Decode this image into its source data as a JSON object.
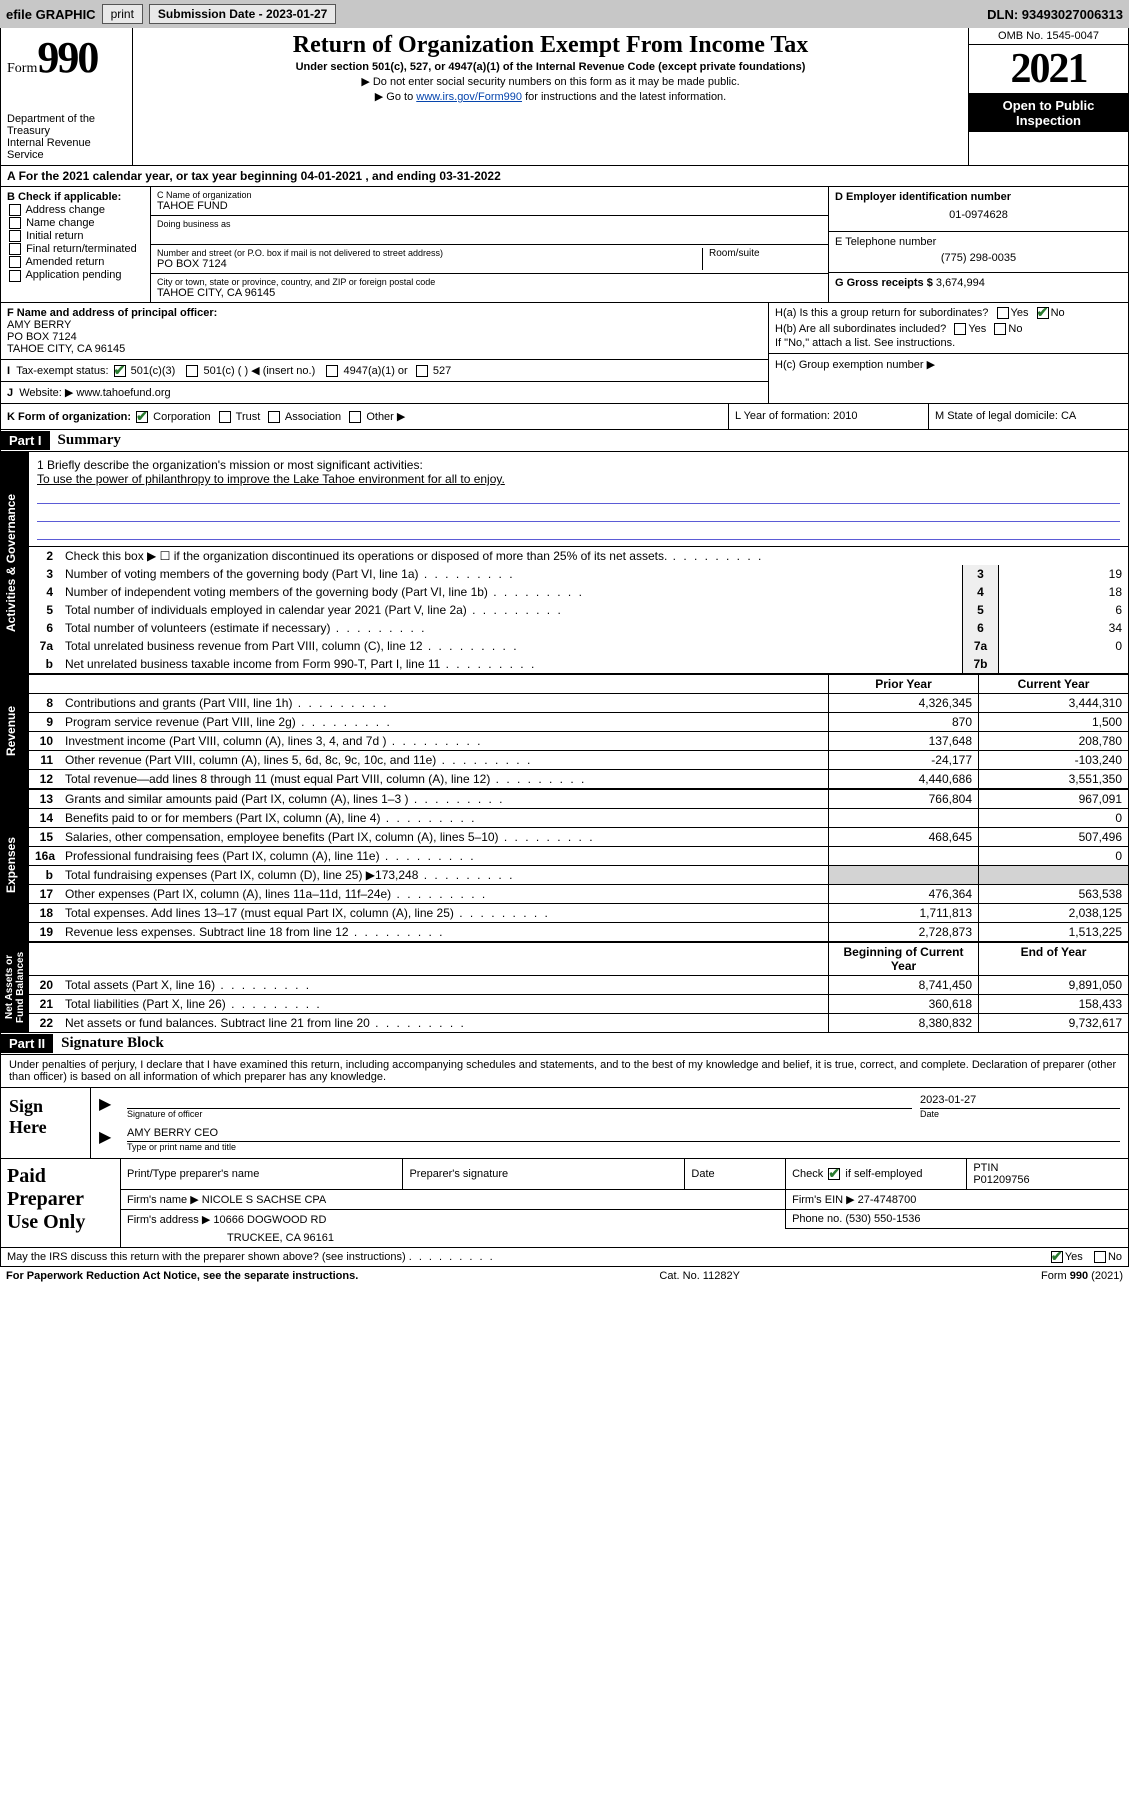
{
  "topbar": {
    "efile_label": "efile GRAPHIC",
    "print_btn": "print",
    "sub_date_label": "Submission Date - 2023-01-27",
    "dln_label": "DLN: 93493027006313"
  },
  "header": {
    "form_small": "Form",
    "form_big": "990",
    "title": "Return of Organization Exempt From Income Tax",
    "subtitle": "Under section 501(c), 527, or 4947(a)(1) of the Internal Revenue Code (except private foundations)",
    "note1": "▶ Do not enter social security numbers on this form as it may be made public.",
    "note2_prefix": "▶ Go to ",
    "note2_link": "www.irs.gov/Form990",
    "note2_suffix": " for instructions and the latest information.",
    "dept": "Department of the Treasury",
    "irs": "Internal Revenue Service",
    "omb": "OMB No. 1545-0047",
    "year": "2021",
    "open": "Open to Public Inspection"
  },
  "line_a": "For the 2021 calendar year, or tax year beginning 04-01-2021   , and ending 03-31-2022",
  "block_b": {
    "title": "B Check if applicable:",
    "opts": [
      "Address change",
      "Name change",
      "Initial return",
      "Final return/terminated",
      "Amended return",
      "Application pending"
    ],
    "c_label": "C Name of organization",
    "c_val": "TAHOE FUND",
    "dba_label": "Doing business as",
    "addr_label": "Number and street (or P.O. box if mail is not delivered to street address)",
    "room_label": "Room/suite",
    "addr_val": "PO BOX 7124",
    "city_label": "City or town, state or province, country, and ZIP or foreign postal code",
    "city_val": "TAHOE CITY, CA  96145",
    "d_label": "D Employer identification number",
    "d_val": "01-0974628",
    "e_label": "E Telephone number",
    "e_val": "(775) 298-0035",
    "g_label": "G Gross receipts $",
    "g_val": "3,674,994"
  },
  "block_f": {
    "f_label": "F  Name and address of principal officer:",
    "f_name": "AMY BERRY",
    "f_addr1": "PO BOX 7124",
    "f_addr2": "TAHOE CITY, CA  96145",
    "i_label": "Tax-exempt status:",
    "i_501c3": "501(c)(3)",
    "i_501c": "501(c) (  ) ◀ (insert no.)",
    "i_4947": "4947(a)(1) or",
    "i_527": "527",
    "j_label": "Website: ▶",
    "j_val": "www.tahoefund.org",
    "ha_label": "H(a)  Is this a group return for subordinates?",
    "hb_label": "H(b)  Are all subordinates included?",
    "hb_note": "If \"No,\" attach a list. See instructions.",
    "hc_label": "H(c)  Group exemption number ▶",
    "yes": "Yes",
    "no": "No"
  },
  "line_k": {
    "k_label": "K Form of organization:",
    "opts": [
      "Corporation",
      "Trust",
      "Association",
      "Other ▶"
    ],
    "l_label": "L Year of formation: 2010",
    "m_label": "M State of legal domicile: CA"
  },
  "part1": {
    "num": "Part I",
    "title": "Summary"
  },
  "mission": {
    "l1": "1   Briefly describe the organization's mission or most significant activities:",
    "text": "To use the power of philanthropy to improve the Lake Tahoe environment for all to enjoy."
  },
  "gov_rows": [
    {
      "n": "2",
      "t": "Check this box ▶ ☐  if the organization discontinued its operations or disposed of more than 25% of its net assets.",
      "box": "",
      "v": ""
    },
    {
      "n": "3",
      "t": "Number of voting members of the governing body (Part VI, line 1a)",
      "box": "3",
      "v": "19"
    },
    {
      "n": "4",
      "t": "Number of independent voting members of the governing body (Part VI, line 1b)",
      "box": "4",
      "v": "18"
    },
    {
      "n": "5",
      "t": "Total number of individuals employed in calendar year 2021 (Part V, line 2a)",
      "box": "5",
      "v": "6"
    },
    {
      "n": "6",
      "t": "Total number of volunteers (estimate if necessary)",
      "box": "6",
      "v": "34"
    },
    {
      "n": "7a",
      "t": "Total unrelated business revenue from Part VIII, column (C), line 12",
      "box": "7a",
      "v": "0"
    },
    {
      "n": "b",
      "t": "Net unrelated business taxable income from Form 990-T, Part I, line 11",
      "box": "7b",
      "v": ""
    }
  ],
  "col_hdr": {
    "py": "Prior Year",
    "cy": "Current Year"
  },
  "rev_rows": [
    {
      "n": "8",
      "t": "Contributions and grants (Part VIII, line 1h)",
      "py": "4,326,345",
      "cy": "3,444,310"
    },
    {
      "n": "9",
      "t": "Program service revenue (Part VIII, line 2g)",
      "py": "870",
      "cy": "1,500"
    },
    {
      "n": "10",
      "t": "Investment income (Part VIII, column (A), lines 3, 4, and 7d )",
      "py": "137,648",
      "cy": "208,780"
    },
    {
      "n": "11",
      "t": "Other revenue (Part VIII, column (A), lines 5, 6d, 8c, 9c, 10c, and 11e)",
      "py": "-24,177",
      "cy": "-103,240"
    },
    {
      "n": "12",
      "t": "Total revenue—add lines 8 through 11 (must equal Part VIII, column (A), line 12)",
      "py": "4,440,686",
      "cy": "3,551,350"
    }
  ],
  "exp_rows": [
    {
      "n": "13",
      "t": "Grants and similar amounts paid (Part IX, column (A), lines 1–3 )",
      "py": "766,804",
      "cy": "967,091"
    },
    {
      "n": "14",
      "t": "Benefits paid to or for members (Part IX, column (A), line 4)",
      "py": "",
      "cy": "0"
    },
    {
      "n": "15",
      "t": "Salaries, other compensation, employee benefits (Part IX, column (A), lines 5–10)",
      "py": "468,645",
      "cy": "507,496"
    },
    {
      "n": "16a",
      "t": "Professional fundraising fees (Part IX, column (A), line 11e)",
      "py": "",
      "cy": "0"
    },
    {
      "n": "b",
      "t": "Total fundraising expenses (Part IX, column (D), line 25) ▶173,248",
      "py": "grey",
      "cy": "grey"
    },
    {
      "n": "17",
      "t": "Other expenses (Part IX, column (A), lines 11a–11d, 11f–24e)",
      "py": "476,364",
      "cy": "563,538"
    },
    {
      "n": "18",
      "t": "Total expenses. Add lines 13–17 (must equal Part IX, column (A), line 25)",
      "py": "1,711,813",
      "cy": "2,038,125"
    },
    {
      "n": "19",
      "t": "Revenue less expenses. Subtract line 18 from line 12",
      "py": "2,728,873",
      "cy": "1,513,225"
    }
  ],
  "na_hdr": {
    "py": "Beginning of Current Year",
    "cy": "End of Year"
  },
  "na_rows": [
    {
      "n": "20",
      "t": "Total assets (Part X, line 16)",
      "py": "8,741,450",
      "cy": "9,891,050"
    },
    {
      "n": "21",
      "t": "Total liabilities (Part X, line 26)",
      "py": "360,618",
      "cy": "158,433"
    },
    {
      "n": "22",
      "t": "Net assets or fund balances. Subtract line 21 from line 20",
      "py": "8,380,832",
      "cy": "9,732,617"
    }
  ],
  "part2": {
    "num": "Part II",
    "title": "Signature Block"
  },
  "sig": {
    "decl": "Under penalties of perjury, I declare that I have examined this return, including accompanying schedules and statements, and to the best of my knowledge and belief, it is true, correct, and complete. Declaration of preparer (other than officer) is based on all information of which preparer has any knowledge.",
    "here": "Sign Here",
    "sig_label": "Signature of officer",
    "date_label": "Date",
    "date_val": "2023-01-27",
    "name_val": "AMY BERRY CEO",
    "name_label": "Type or print name and title"
  },
  "prep": {
    "title": "Paid Preparer Use Only",
    "h1": "Print/Type preparer's name",
    "h2": "Preparer's signature",
    "h3": "Date",
    "h4a": "Check",
    "h4b": "if self-employed",
    "h5": "PTIN",
    "ptin": "P01209756",
    "firm_label": "Firm's name   ▶",
    "firm_val": "NICOLE S SACHSE CPA",
    "ein_label": "Firm's EIN ▶",
    "ein_val": "27-4748700",
    "addr_label": "Firm's address ▶",
    "addr1": "10666 DOGWOOD RD",
    "addr2": "TRUCKEE, CA  96161",
    "phone_label": "Phone no.",
    "phone_val": "(530) 550-1536"
  },
  "line_may": {
    "q": "May the IRS discuss this return with the preparer shown above? (see instructions)",
    "yes": "Yes",
    "no": "No"
  },
  "footer": {
    "left": "For Paperwork Reduction Act Notice, see the separate instructions.",
    "mid": "Cat. No. 11282Y",
    "right_a": "Form ",
    "right_b": "990",
    "right_c": " (2021)"
  }
}
